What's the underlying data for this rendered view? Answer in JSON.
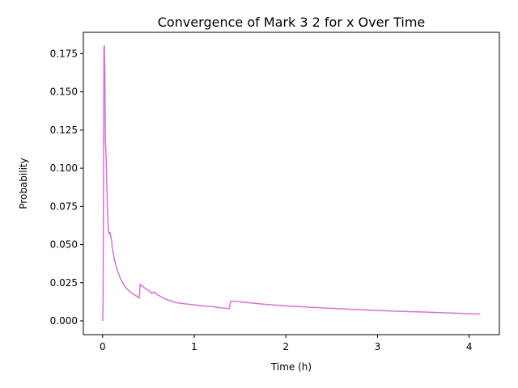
{
  "chart_data": {
    "type": "line",
    "title": "Convergence of Mark 3 2 for x Over Time",
    "xlabel": "Time (h)",
    "ylabel": "Probability",
    "xlim": [
      -0.21,
      4.33
    ],
    "ylim": [
      -0.009,
      0.189
    ],
    "xticks": [
      0,
      1,
      2,
      3,
      4
    ],
    "xtick_labels": [
      "0",
      "1",
      "2",
      "3",
      "4"
    ],
    "yticks": [
      0.0,
      0.025,
      0.05,
      0.075,
      0.1,
      0.125,
      0.15,
      0.175
    ],
    "ytick_labels": [
      "0.000",
      "0.025",
      "0.050",
      "0.075",
      "0.100",
      "0.125",
      "0.150",
      "0.175"
    ],
    "grid": false,
    "legend": "none",
    "colors": {
      "line": "#da70d6"
    },
    "series": [
      {
        "x": [
          0.0,
          0.005,
          0.01,
          0.015,
          0.02,
          0.025,
          0.03,
          0.04,
          0.045,
          0.05,
          0.055,
          0.06,
          0.07,
          0.08,
          0.09,
          0.1,
          0.105,
          0.11,
          0.13,
          0.15,
          0.18,
          0.2,
          0.25,
          0.3,
          0.35,
          0.4,
          0.41,
          0.45,
          0.5,
          0.54,
          0.56,
          0.6,
          0.7,
          0.8,
          0.9,
          1.0,
          1.1,
          1.2,
          1.3,
          1.38,
          1.4,
          1.5,
          1.75,
          2.0,
          2.5,
          3.0,
          3.5,
          4.12
        ],
        "y": [
          0.0,
          0.01,
          0.09,
          0.18,
          0.18,
          0.16,
          0.12,
          0.105,
          0.09,
          0.08,
          0.07,
          0.062,
          0.057,
          0.058,
          0.055,
          0.052,
          0.048,
          0.046,
          0.04,
          0.035,
          0.03,
          0.027,
          0.022,
          0.019,
          0.017,
          0.015,
          0.024,
          0.022,
          0.02,
          0.018,
          0.019,
          0.017,
          0.014,
          0.012,
          0.0112,
          0.0105,
          0.0098,
          0.0093,
          0.0085,
          0.008,
          0.013,
          0.0125,
          0.011,
          0.0098,
          0.0082,
          0.0068,
          0.0058,
          0.0045
        ]
      }
    ]
  }
}
